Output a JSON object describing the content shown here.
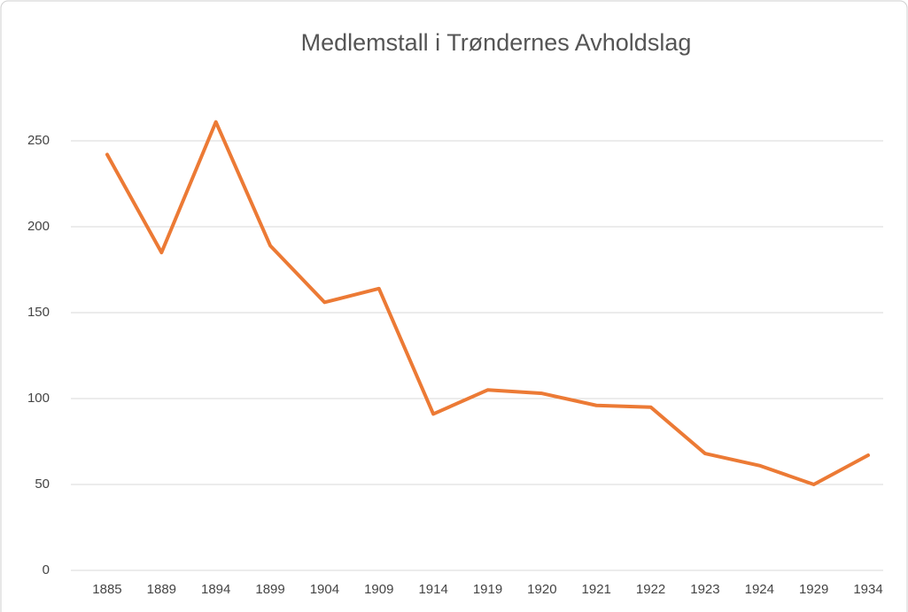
{
  "chart_data": {
    "type": "line",
    "title": "Medlemstall i Trøndernes Avholdslag",
    "categories": [
      "1885",
      "1889",
      "1894",
      "1899",
      "1904",
      "1909",
      "1914",
      "1919",
      "1920",
      "1921",
      "1922",
      "1923",
      "1924",
      "1929",
      "1934"
    ],
    "values": [
      242,
      185,
      261,
      189,
      156,
      164,
      91,
      105,
      103,
      96,
      95,
      68,
      61,
      50,
      67
    ],
    "color": "#ec7a35",
    "ylim": [
      0,
      275
    ],
    "yticks": [
      0,
      50,
      100,
      150,
      200,
      250
    ],
    "grid": true
  }
}
